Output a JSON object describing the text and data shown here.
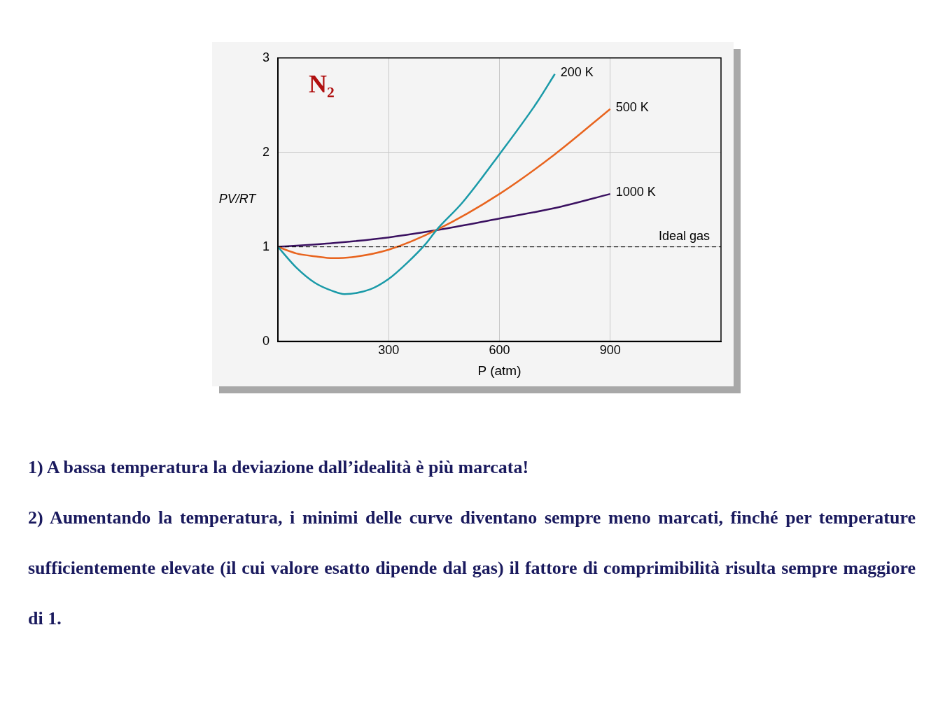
{
  "chart_data": {
    "type": "line",
    "title": "N₂",
    "xlabel": "P (atm)",
    "ylabel": "PV/RT",
    "xlim": [
      0,
      1200
    ],
    "xticks": [
      300,
      600,
      900
    ],
    "ylim": [
      0,
      3
    ],
    "yticks": [
      0,
      1,
      2,
      3
    ],
    "grid": true,
    "legend": false,
    "series": [
      {
        "name": "200 K",
        "color": "#1a9aa8",
        "x": [
          0,
          50,
          100,
          150,
          180,
          250,
          300,
          350,
          400,
          430,
          500,
          600,
          700,
          750
        ],
        "values": [
          1,
          0.78,
          0.62,
          0.53,
          0.5,
          0.55,
          0.66,
          0.83,
          1.03,
          1.18,
          1.47,
          1.98,
          2.52,
          2.83
        ]
      },
      {
        "name": "500 K",
        "color": "#e8641e",
        "x": [
          0,
          50,
          100,
          150,
          200,
          300,
          430,
          600,
          750,
          900
        ],
        "values": [
          1,
          0.93,
          0.9,
          0.88,
          0.89,
          0.97,
          1.18,
          1.56,
          1.98,
          2.46
        ]
      },
      {
        "name": "1000 K",
        "color": "#3a1060",
        "x": [
          0,
          150,
          300,
          450,
          600,
          750,
          900
        ],
        "values": [
          1,
          1.04,
          1.1,
          1.19,
          1.3,
          1.41,
          1.56
        ]
      }
    ],
    "ref_lines": [
      {
        "axis": "y",
        "value": 1,
        "label": "Ideal gas",
        "color": "#000000",
        "line_style": "dashed"
      }
    ],
    "annotations": [
      "1) A bassa temperatura la deviazione dall’idealità è più marcata!",
      "2) Aumentando la temperatura, i minimi delle curve diventano sempre meno marcati, finché per temperature sufficientemente elevate (il cui valore esatto dipende dal gas) il fattore di comprimibilità risulta sempre maggiore di 1."
    ]
  }
}
